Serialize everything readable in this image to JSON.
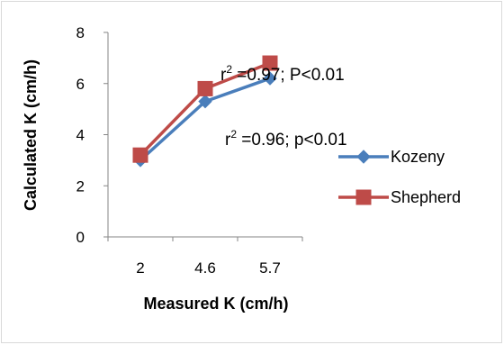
{
  "chart_data": {
    "type": "line",
    "categories": [
      "2",
      "4.6",
      "5.7"
    ],
    "series": [
      {
        "name": "Kozeny",
        "values": [
          3.0,
          5.3,
          6.2
        ],
        "color": "#4a7ebb",
        "marker": "diamond"
      },
      {
        "name": "Shepherd",
        "values": [
          3.2,
          5.8,
          6.8
        ],
        "color": "#be4b48",
        "marker": "square"
      }
    ],
    "xlabel": "Measured K (cm/h)",
    "ylabel": "Calculated K (cm/h)",
    "ylim": [
      0,
      8
    ],
    "yticks": [
      0,
      2,
      4,
      6,
      8
    ],
    "grid": false,
    "legend_position": "right",
    "annotations": [
      {
        "base": "r",
        "sup": "2",
        "rest": " =0.97; P<0.01"
      },
      {
        "base": "r",
        "sup": "2",
        "rest": " =0.96; p<0.01"
      }
    ]
  }
}
